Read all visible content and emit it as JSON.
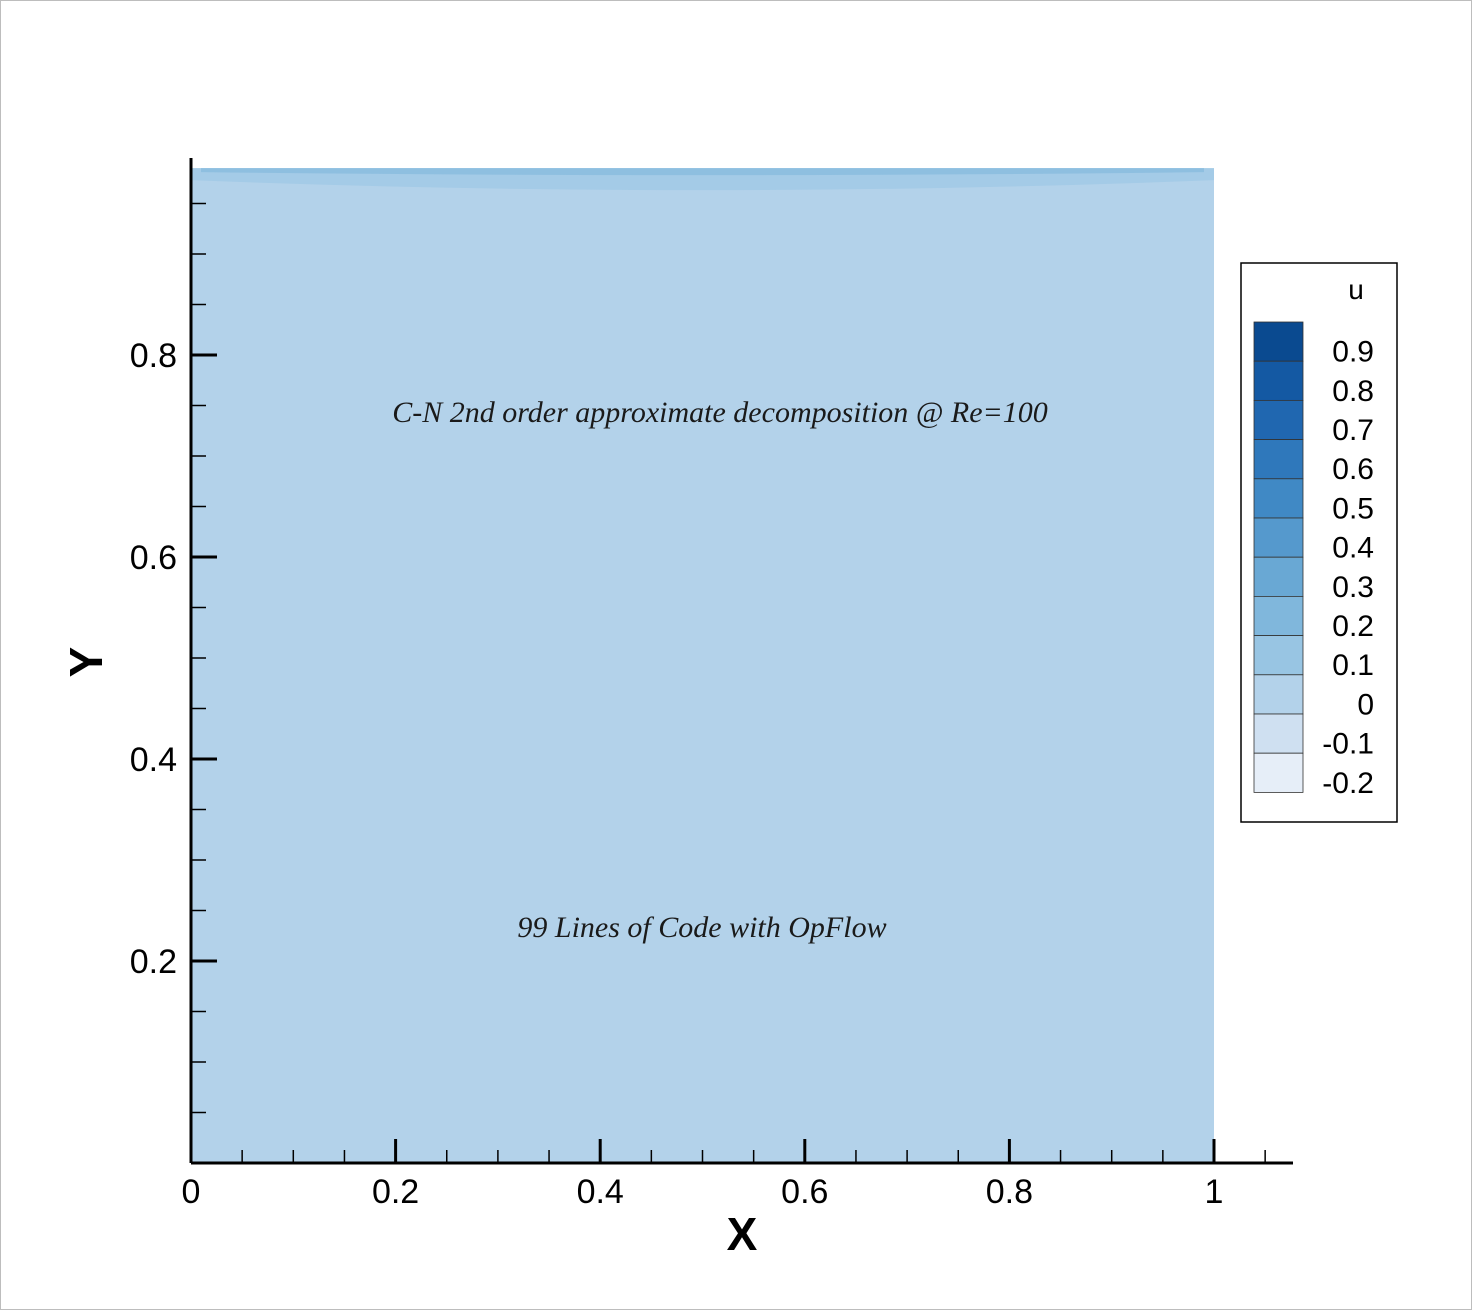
{
  "chart_data": {
    "type": "heatmap",
    "variable": "u",
    "xlabel": "X",
    "ylabel": "Y",
    "xlim": [
      0,
      1.08
    ],
    "ylim": [
      0,
      0.985
    ],
    "x_ticks": [
      "0",
      "0.2",
      "0.4",
      "0.6",
      "0.8",
      "1"
    ],
    "y_ticks": [
      "0.2",
      "0.4",
      "0.6",
      "0.8"
    ],
    "x_tick_values": [
      0,
      0.2,
      0.4,
      0.6,
      0.8,
      1
    ],
    "y_tick_values": [
      0.2,
      0.4,
      0.6,
      0.8
    ],
    "annotations": [
      "C-N 2nd order approximate decomposition @ Re=100",
      "99 Lines of Code with OpFlow"
    ],
    "legend": {
      "title": "u",
      "placement": "right",
      "levels": [
        {
          "label": "0.9",
          "color": "#0a4a90"
        },
        {
          "label": "0.8",
          "color": "#1459a3"
        },
        {
          "label": "0.7",
          "color": "#2067b0"
        },
        {
          "label": "0.6",
          "color": "#2f78bb"
        },
        {
          "label": "0.5",
          "color": "#4089c5"
        },
        {
          "label": "0.4",
          "color": "#5599cd"
        },
        {
          "label": "0.3",
          "color": "#69a8d4"
        },
        {
          "label": "0.2",
          "color": "#80b7dc"
        },
        {
          "label": "0.1",
          "color": "#98c5e3"
        },
        {
          "label": "0",
          "color": "#b3d2ea"
        },
        {
          "label": "-0.1",
          "color": "#cfe0f1"
        },
        {
          "label": "-0.2",
          "color": "#e6eef8"
        }
      ]
    },
    "field": {
      "domain_x": [
        0,
        1
      ],
      "domain_y": [
        0,
        0.985
      ],
      "background_level": "0",
      "top_band_level": "0.1"
    }
  }
}
